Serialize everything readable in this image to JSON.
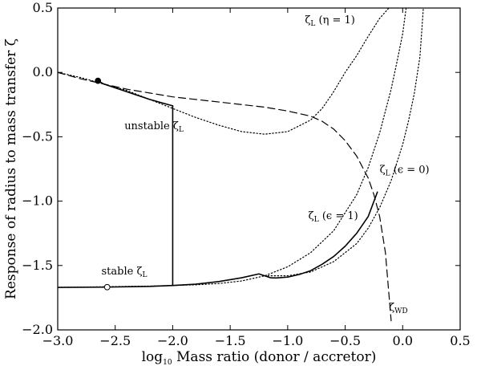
{
  "chart_data": {
    "type": "line",
    "title": "",
    "xlabel": {
      "prefix": "log",
      "sub": "10",
      "rest": " Mass ratio (donor / accretor)"
    },
    "ylabel": "Response of radius to mass transfer ζ",
    "xlim": [
      -3.0,
      0.5
    ],
    "ylim": [
      -2.0,
      0.5
    ],
    "xticks": [
      -3.0,
      -2.5,
      -2.0,
      -1.5,
      -1.0,
      -0.5,
      0.0,
      0.5
    ],
    "xtick_labels": [
      "−3.0",
      "−2.5",
      "−2.0",
      "−1.5",
      "−1.0",
      "−0.5",
      "0.0",
      "0.5"
    ],
    "yticks": [
      -2.0,
      -1.5,
      -1.0,
      -0.5,
      0.0,
      0.5
    ],
    "ytick_labels": [
      "−2.0",
      "−1.5",
      "−1.0",
      "−0.5",
      "0.0",
      "0.5"
    ],
    "grid": false,
    "legend": "none",
    "series": [
      {
        "style": "dashed",
        "x": [
          -3.0,
          -2.8,
          -2.6,
          -2.4,
          -2.2,
          -2.0,
          -1.8,
          -1.6,
          -1.4,
          -1.2,
          -1.0,
          -0.8,
          -0.7,
          -0.6,
          -0.5,
          -0.4,
          -0.3,
          -0.25,
          -0.2,
          -0.15,
          -0.1
        ],
        "y": [
          0.0,
          -0.05,
          -0.09,
          -0.13,
          -0.16,
          -0.19,
          -0.21,
          -0.23,
          -0.25,
          -0.27,
          -0.3,
          -0.34,
          -0.38,
          -0.44,
          -0.53,
          -0.65,
          -0.82,
          -0.95,
          -1.12,
          -1.4,
          -1.93
        ]
      },
      {
        "style": "dotted",
        "x": [
          -3.0,
          -2.8,
          -2.6,
          -2.4,
          -2.2,
          -2.0,
          -1.8,
          -1.6,
          -1.4,
          -1.2,
          -1.0,
          -0.8,
          -0.7,
          -0.6,
          -0.5,
          -0.4,
          -0.3,
          -0.2,
          -0.12
        ],
        "y": [
          0.0,
          -0.04,
          -0.09,
          -0.14,
          -0.21,
          -0.28,
          -0.35,
          -0.41,
          -0.46,
          -0.48,
          -0.46,
          -0.37,
          -0.28,
          -0.15,
          0.0,
          0.13,
          0.28,
          0.42,
          0.5
        ]
      },
      {
        "style": "dotted",
        "x": [
          -3.0,
          -2.6,
          -2.2,
          -2.0,
          -1.8,
          -1.6,
          -1.4,
          -1.2,
          -1.0,
          -0.8,
          -0.6,
          -0.4,
          -0.3,
          -0.2,
          -0.1,
          -0.05,
          0.0,
          0.03
        ],
        "y": [
          -1.67,
          -1.665,
          -1.66,
          -1.655,
          -1.65,
          -1.64,
          -1.62,
          -1.58,
          -1.51,
          -1.4,
          -1.23,
          -0.95,
          -0.74,
          -0.47,
          -0.13,
          0.08,
          0.3,
          0.5
        ]
      },
      {
        "style": "dotted",
        "x": [
          -1.2,
          -1.0,
          -0.8,
          -0.6,
          -0.4,
          -0.3,
          -0.2,
          -0.1,
          0.0,
          0.05,
          0.1,
          0.15,
          0.18
        ],
        "y": [
          -1.58,
          -1.58,
          -1.55,
          -1.47,
          -1.33,
          -1.21,
          -1.05,
          -0.84,
          -0.56,
          -0.38,
          -0.17,
          0.12,
          0.5
        ]
      },
      {
        "style": "solid",
        "x": [
          -2.65,
          -2.6,
          -2.4,
          -2.2,
          -2.0
        ],
        "y": [
          -0.065,
          -0.09,
          -0.15,
          -0.21,
          -0.26
        ]
      },
      {
        "style": "solid",
        "x": [
          -2.0,
          -2.0
        ],
        "y": [
          -0.26,
          -1.655
        ]
      },
      {
        "style": "solid",
        "x": [
          -3.0,
          -2.6,
          -2.2,
          -2.0,
          -1.8,
          -1.6,
          -1.4,
          -1.25,
          -1.2,
          -1.15,
          -1.1,
          -1.0,
          -0.9,
          -0.8,
          -0.7,
          -0.6,
          -0.5,
          -0.4,
          -0.3,
          -0.22
        ],
        "y": [
          -1.67,
          -1.668,
          -1.662,
          -1.655,
          -1.645,
          -1.625,
          -1.595,
          -1.565,
          -1.58,
          -1.595,
          -1.597,
          -1.59,
          -1.57,
          -1.54,
          -1.49,
          -1.43,
          -1.35,
          -1.25,
          -1.12,
          -0.93
        ]
      }
    ],
    "markers": [
      {
        "x": -2.65,
        "y": -0.065,
        "fill": "#000000"
      },
      {
        "x": -2.57,
        "y": -1.668,
        "fill": "#ffffff"
      }
    ],
    "annotations": [
      {
        "main": "ζ",
        "sub": "L",
        "tail": " (η = 1)",
        "x": -0.85,
        "y": 0.38
      },
      {
        "main": "unstable ζ",
        "sub": "L",
        "tail": "",
        "x": -2.42,
        "y": -0.44
      },
      {
        "main": "ζ",
        "sub": "L",
        "tail": " (ϵ = 0)",
        "x": -0.2,
        "y": -0.78
      },
      {
        "main": "ζ",
        "sub": "L",
        "tail": " (ϵ = 1)",
        "x": -0.82,
        "y": -1.14
      },
      {
        "main": "stable ζ",
        "sub": "L",
        "tail": "",
        "x": -2.62,
        "y": -1.57
      },
      {
        "main": "ζ",
        "sub": "WD",
        "tail": "",
        "x": -0.12,
        "y": -1.85
      }
    ]
  }
}
